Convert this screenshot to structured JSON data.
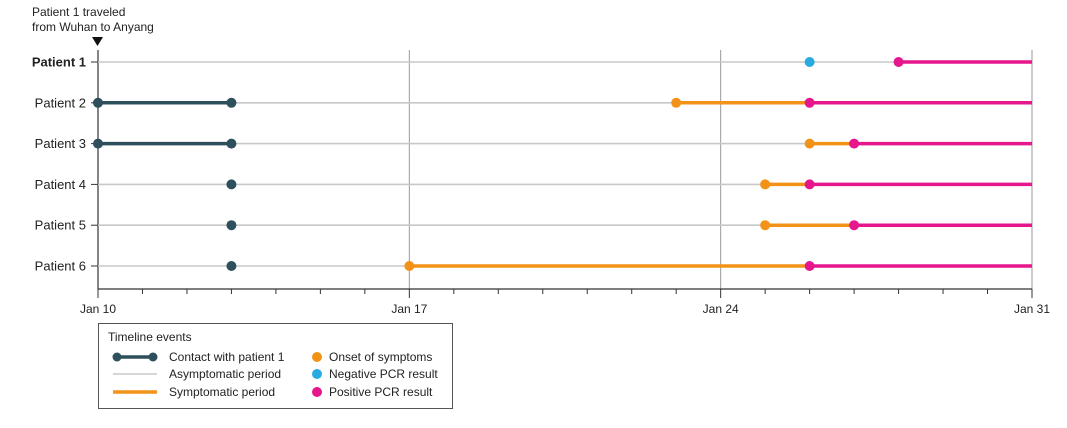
{
  "chart_data": {
    "type": "timeline",
    "annotation": {
      "line1": "Patient 1 traveled",
      "line2": "from Wuhan to Anyang"
    },
    "x_axis": {
      "start_day": 10,
      "end_day": 31,
      "tick_labels": [
        {
          "day": 10,
          "label": "Jan 10"
        },
        {
          "day": 17,
          "label": "Jan 17"
        },
        {
          "day": 24,
          "label": "Jan 24"
        },
        {
          "day": 31,
          "label": "Jan 31"
        }
      ]
    },
    "colors": {
      "contact": "#2e4f5c",
      "asymptomatic": "#c8c8c8",
      "symptomatic": "#f29318",
      "onset": "#f29318",
      "negative_pcr": "#29abe2",
      "positive_pcr": "#e6168c",
      "axis": "#333333",
      "grid": "#9a9a9a"
    },
    "patients": [
      {
        "label": "Patient 1",
        "bold": true,
        "asymptomatic": [
          10,
          31
        ],
        "contact": null,
        "symptomatic": null,
        "onset": null,
        "negative_pcr": 26,
        "positive_pcr": 28,
        "positive_period": [
          28,
          31
        ]
      },
      {
        "label": "Patient 2",
        "bold": false,
        "asymptomatic": [
          10,
          31
        ],
        "contact": [
          10,
          13
        ],
        "symptomatic": [
          23,
          26
        ],
        "onset": 23,
        "negative_pcr": null,
        "positive_pcr": 26,
        "positive_period": [
          26,
          31
        ]
      },
      {
        "label": "Patient 3",
        "bold": false,
        "asymptomatic": [
          10,
          31
        ],
        "contact": [
          10,
          13
        ],
        "symptomatic": [
          26,
          27
        ],
        "onset": 26,
        "negative_pcr": null,
        "positive_pcr": 27,
        "positive_period": [
          27,
          31
        ]
      },
      {
        "label": "Patient 4",
        "bold": false,
        "asymptomatic": [
          10,
          31
        ],
        "contact": [
          13,
          13
        ],
        "symptomatic": [
          25,
          26
        ],
        "onset": 25,
        "negative_pcr": null,
        "positive_pcr": 26,
        "positive_period": [
          26,
          31
        ]
      },
      {
        "label": "Patient 5",
        "bold": false,
        "asymptomatic": [
          10,
          31
        ],
        "contact": [
          13,
          13
        ],
        "symptomatic": [
          25,
          27
        ],
        "onset": 25,
        "negative_pcr": null,
        "positive_pcr": 27,
        "positive_period": [
          27,
          31
        ]
      },
      {
        "label": "Patient 6",
        "bold": false,
        "asymptomatic": [
          10,
          31
        ],
        "contact": [
          13,
          13
        ],
        "symptomatic": [
          17,
          26
        ],
        "onset": 17,
        "negative_pcr": null,
        "positive_pcr": 26,
        "positive_period": [
          26,
          31
        ]
      }
    ],
    "legend": {
      "title": "Timeline events",
      "items": [
        {
          "key": "contact",
          "label": "Contact with patient 1"
        },
        {
          "key": "asymptomatic",
          "label": "Asymptomatic period"
        },
        {
          "key": "symptomatic",
          "label": "Symptomatic period"
        },
        {
          "key": "onset",
          "label": "Onset of symptoms"
        },
        {
          "key": "negative_pcr",
          "label": "Negative PCR result"
        },
        {
          "key": "positive_pcr",
          "label": "Positive PCR result"
        }
      ]
    }
  }
}
